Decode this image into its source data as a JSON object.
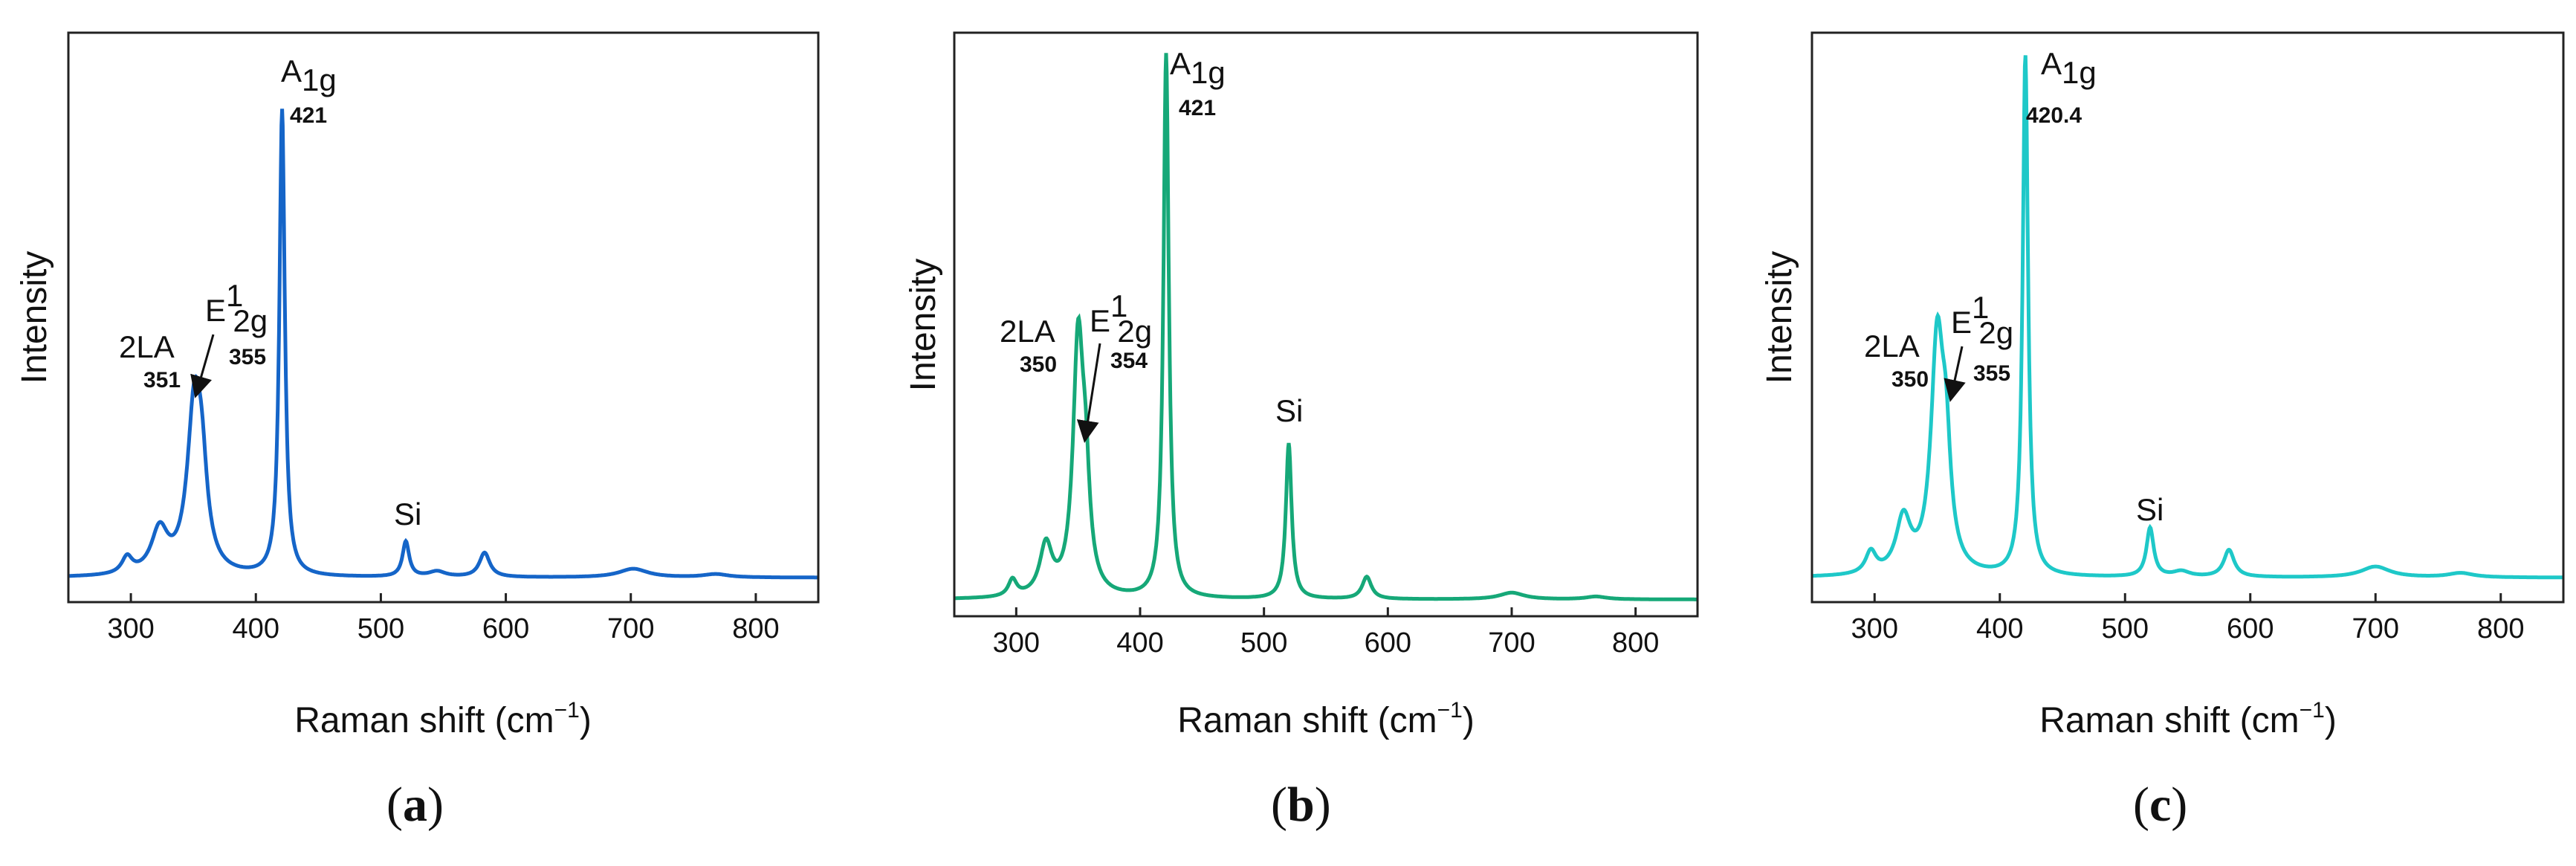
{
  "chart_data": [
    {
      "type": "line",
      "panel_label": "a",
      "color": "#1565c8",
      "xlabel": "Raman shift (cm",
      "xlabel_sup": "−1",
      "xlabel_end": ")",
      "ylabel": "Intensity",
      "xlim": [
        250,
        850
      ],
      "ylim": [
        0,
        1.05
      ],
      "xticks": [
        300,
        400,
        500,
        600,
        700,
        800
      ],
      "baseline": 0.045,
      "peaks": [
        {
          "x": 297,
          "h": 0.03,
          "w": 5
        },
        {
          "x": 323,
          "h": 0.08,
          "w": 8
        },
        {
          "x": 351,
          "h": 0.31,
          "w": 7
        },
        {
          "x": 357,
          "h": 0.12,
          "w": 5
        },
        {
          "x": 421,
          "h": 0.86,
          "w": 2.6
        },
        {
          "x": 520,
          "h": 0.065,
          "w": 3.2
        },
        {
          "x": 545,
          "h": 0.01,
          "w": 8
        },
        {
          "x": 583,
          "h": 0.045,
          "w": 5
        },
        {
          "x": 702,
          "h": 0.016,
          "w": 14
        },
        {
          "x": 768,
          "h": 0.006,
          "w": 12
        }
      ],
      "annotations": {
        "a1g": {
          "main": "A",
          "sub": "1g",
          "value": "421"
        },
        "e2g": {
          "main": "E",
          "sup": "1",
          "sub": "2g",
          "value": "355"
        },
        "la": {
          "main": "2LA",
          "value": "351"
        },
        "si": {
          "main": "Si"
        }
      }
    },
    {
      "type": "line",
      "panel_label": "b",
      "color": "#16a878",
      "xlabel": "Raman shift (cm",
      "xlabel_sup": "−1",
      "xlabel_end": ")",
      "ylabel": "Intensity",
      "xlim": [
        250,
        850
      ],
      "ylim": [
        0,
        1.05
      ],
      "xticks": [
        300,
        400,
        500,
        600,
        700,
        800
      ],
      "baseline": 0.03,
      "peaks": [
        {
          "x": 297,
          "h": 0.03,
          "w": 4
        },
        {
          "x": 324,
          "h": 0.09,
          "w": 6
        },
        {
          "x": 350,
          "h": 0.45,
          "w": 5
        },
        {
          "x": 356,
          "h": 0.16,
          "w": 4
        },
        {
          "x": 421,
          "h": 0.98,
          "w": 2.6
        },
        {
          "x": 520,
          "h": 0.28,
          "w": 2.8
        },
        {
          "x": 583,
          "h": 0.04,
          "w": 4.5
        },
        {
          "x": 700,
          "h": 0.012,
          "w": 12
        },
        {
          "x": 768,
          "h": 0.005,
          "w": 10
        }
      ],
      "annotations": {
        "a1g": {
          "main": "A",
          "sub": "1g",
          "value": "421"
        },
        "e2g": {
          "main": "E",
          "sup": "1",
          "sub": "2g",
          "value": "354"
        },
        "la": {
          "main": "2LA",
          "value": "350"
        },
        "si": {
          "main": "Si"
        }
      }
    },
    {
      "type": "line",
      "panel_label": "c",
      "color": "#1ec8c8",
      "xlabel": "Raman shift (cm",
      "xlabel_sup": "−1",
      "xlabel_end": ")",
      "ylabel": "Intensity",
      "xlim": [
        250,
        850
      ],
      "ylim": [
        0,
        1.05
      ],
      "xticks": [
        300,
        400,
        500,
        600,
        700,
        800
      ],
      "baseline": 0.045,
      "peaks": [
        {
          "x": 297,
          "h": 0.04,
          "w": 5
        },
        {
          "x": 323,
          "h": 0.1,
          "w": 7
        },
        {
          "x": 350,
          "h": 0.42,
          "w": 6
        },
        {
          "x": 357,
          "h": 0.18,
          "w": 4.5
        },
        {
          "x": 420.4,
          "h": 0.96,
          "w": 2.6
        },
        {
          "x": 520,
          "h": 0.09,
          "w": 3.5
        },
        {
          "x": 545,
          "h": 0.01,
          "w": 8
        },
        {
          "x": 583,
          "h": 0.05,
          "w": 5
        },
        {
          "x": 700,
          "h": 0.02,
          "w": 14
        },
        {
          "x": 768,
          "h": 0.008,
          "w": 12
        }
      ],
      "annotations": {
        "a1g": {
          "main": "A",
          "sub": "1g",
          "value": "420.4"
        },
        "e2g": {
          "main": "E",
          "sup": "1",
          "sub": "2g",
          "value": "355"
        },
        "la": {
          "main": "2LA",
          "value": "350"
        },
        "si": {
          "main": "Si"
        }
      }
    }
  ]
}
